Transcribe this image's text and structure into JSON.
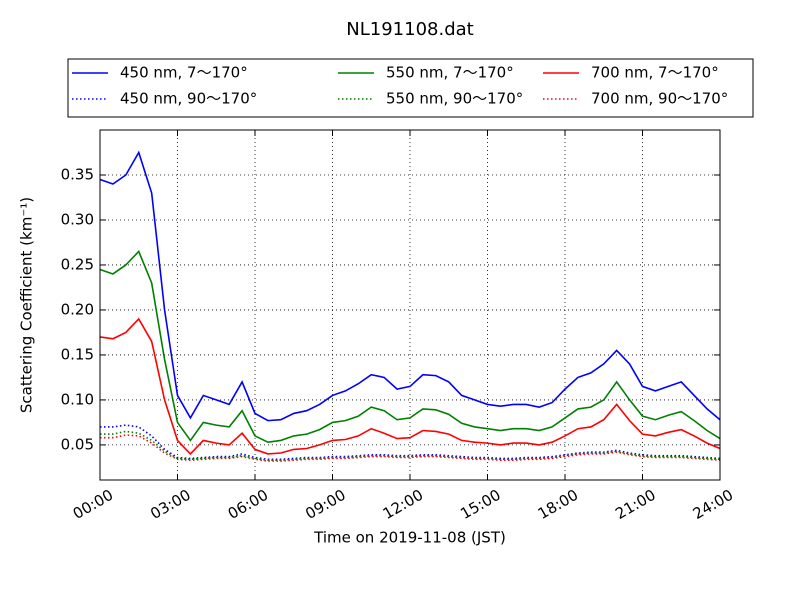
{
  "chart_data": {
    "type": "line",
    "title": "NL191108.dat",
    "xlabel": "Time on 2019-11-08 (JST)",
    "ylabel": "Scattering Coefficient (km⁻¹)",
    "x": [
      0,
      0.5,
      1,
      1.5,
      2,
      2.5,
      3,
      3.5,
      4,
      4.5,
      5,
      5.5,
      6,
      6.5,
      7,
      7.5,
      8,
      8.5,
      9,
      9.5,
      10,
      10.5,
      11,
      11.5,
      12,
      12.5,
      13,
      13.5,
      14,
      14.5,
      15,
      15.5,
      16,
      16.5,
      17,
      17.5,
      18,
      18.5,
      19,
      19.5,
      20,
      20.5,
      21,
      21.5,
      22,
      22.5,
      23,
      23.5,
      24
    ],
    "xlim": [
      0,
      24
    ],
    "xticks": [
      {
        "value": 0,
        "label": "00:00"
      },
      {
        "value": 3,
        "label": "03:00"
      },
      {
        "value": 6,
        "label": "06:00"
      },
      {
        "value": 9,
        "label": "09:00"
      },
      {
        "value": 12,
        "label": "12:00"
      },
      {
        "value": 15,
        "label": "15:00"
      },
      {
        "value": 18,
        "label": "18:00"
      },
      {
        "value": 21,
        "label": "21:00"
      },
      {
        "value": 24,
        "label": "24:00"
      }
    ],
    "ylim": [
      0.011,
      0.4
    ],
    "yticks": [
      0.05,
      {
        "value": 0.1,
        "label": "0.10"
      },
      0.15,
      {
        "value": 0.2,
        "label": "0.20"
      },
      0.25,
      {
        "value": 0.3,
        "label": "0.30"
      },
      0.35
    ],
    "grid": true,
    "legend": "top",
    "series": [
      {
        "name": "450 nm, 7～170°",
        "color": "#0000ff",
        "dash": "solid",
        "values": [
          0.345,
          0.34,
          0.35,
          0.375,
          0.33,
          0.2,
          0.105,
          0.08,
          0.105,
          0.1,
          0.095,
          0.12,
          0.085,
          0.077,
          0.078,
          0.085,
          0.088,
          0.095,
          0.105,
          0.11,
          0.118,
          0.128,
          0.125,
          0.112,
          0.115,
          0.128,
          0.127,
          0.12,
          0.105,
          0.1,
          0.095,
          0.093,
          0.095,
          0.095,
          0.092,
          0.097,
          0.112,
          0.125,
          0.13,
          0.14,
          0.155,
          0.14,
          0.115,
          0.11,
          0.115,
          0.12,
          0.105,
          0.09,
          0.078
        ]
      },
      {
        "name": "450 nm, 90～170°",
        "color": "#0000ff",
        "dash": "dotted",
        "values": [
          0.07,
          0.07,
          0.072,
          0.07,
          0.06,
          0.045,
          0.036,
          0.035,
          0.036,
          0.037,
          0.037,
          0.04,
          0.036,
          0.034,
          0.034,
          0.035,
          0.036,
          0.036,
          0.037,
          0.037,
          0.038,
          0.039,
          0.039,
          0.038,
          0.038,
          0.039,
          0.039,
          0.038,
          0.037,
          0.036,
          0.036,
          0.035,
          0.035,
          0.036,
          0.036,
          0.037,
          0.039,
          0.041,
          0.042,
          0.042,
          0.044,
          0.041,
          0.039,
          0.038,
          0.038,
          0.038,
          0.037,
          0.036,
          0.035
        ]
      },
      {
        "name": "550 nm, 7～170°",
        "color": "#008000",
        "dash": "solid",
        "values": [
          0.245,
          0.24,
          0.25,
          0.265,
          0.23,
          0.145,
          0.075,
          0.055,
          0.075,
          0.072,
          0.07,
          0.088,
          0.06,
          0.053,
          0.055,
          0.06,
          0.062,
          0.067,
          0.075,
          0.077,
          0.082,
          0.092,
          0.088,
          0.078,
          0.08,
          0.09,
          0.089,
          0.084,
          0.074,
          0.07,
          0.068,
          0.066,
          0.068,
          0.068,
          0.066,
          0.07,
          0.08,
          0.09,
          0.092,
          0.1,
          0.12,
          0.1,
          0.082,
          0.078,
          0.083,
          0.087,
          0.077,
          0.066,
          0.057
        ]
      },
      {
        "name": "550 nm, 90～170°",
        "color": "#008000",
        "dash": "dotted",
        "values": [
          0.062,
          0.062,
          0.065,
          0.063,
          0.055,
          0.043,
          0.035,
          0.034,
          0.035,
          0.036,
          0.036,
          0.038,
          0.035,
          0.033,
          0.033,
          0.034,
          0.035,
          0.035,
          0.036,
          0.036,
          0.037,
          0.038,
          0.038,
          0.037,
          0.037,
          0.038,
          0.038,
          0.037,
          0.036,
          0.035,
          0.035,
          0.034,
          0.034,
          0.035,
          0.035,
          0.036,
          0.038,
          0.04,
          0.041,
          0.041,
          0.043,
          0.04,
          0.038,
          0.037,
          0.037,
          0.037,
          0.036,
          0.035,
          0.034
        ]
      },
      {
        "name": "700 nm, 7～170°",
        "color": "#ff0000",
        "dash": "solid",
        "values": [
          0.17,
          0.168,
          0.175,
          0.19,
          0.165,
          0.1,
          0.055,
          0.04,
          0.055,
          0.052,
          0.05,
          0.063,
          0.045,
          0.04,
          0.041,
          0.045,
          0.046,
          0.05,
          0.055,
          0.056,
          0.06,
          0.068,
          0.063,
          0.057,
          0.058,
          0.066,
          0.065,
          0.062,
          0.055,
          0.053,
          0.052,
          0.05,
          0.052,
          0.052,
          0.05,
          0.053,
          0.06,
          0.068,
          0.07,
          0.078,
          0.095,
          0.077,
          0.062,
          0.06,
          0.064,
          0.067,
          0.06,
          0.052,
          0.046
        ]
      },
      {
        "name": "700 nm, 90～170°",
        "color": "#ff0000",
        "dash": "dotted",
        "values": [
          0.058,
          0.058,
          0.061,
          0.06,
          0.052,
          0.041,
          0.034,
          0.033,
          0.034,
          0.035,
          0.035,
          0.037,
          0.034,
          0.032,
          0.032,
          0.033,
          0.034,
          0.034,
          0.035,
          0.035,
          0.036,
          0.037,
          0.037,
          0.036,
          0.036,
          0.037,
          0.037,
          0.036,
          0.035,
          0.034,
          0.034,
          0.033,
          0.033,
          0.034,
          0.034,
          0.035,
          0.037,
          0.039,
          0.04,
          0.04,
          0.042,
          0.039,
          0.037,
          0.036,
          0.036,
          0.036,
          0.035,
          0.034,
          0.033
        ]
      }
    ]
  }
}
